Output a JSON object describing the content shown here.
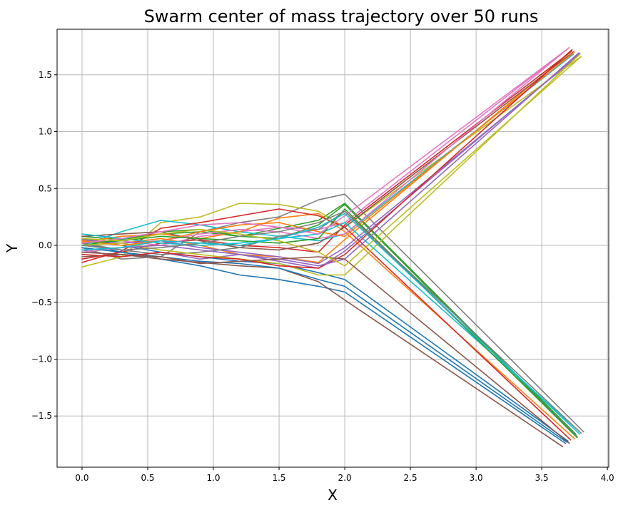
{
  "chart_data": {
    "type": "line",
    "title": "Swarm center of mass trajectory over 50 runs",
    "xlabel": "X",
    "ylabel": "Y",
    "xlim": [
      -0.19,
      4.01
    ],
    "ylim": [
      -1.95,
      1.9
    ],
    "xticks": [
      0.0,
      0.5,
      1.0,
      1.5,
      2.0,
      2.5,
      3.0,
      3.5,
      4.0
    ],
    "xtick_labels": [
      "0.0",
      "0.5",
      "1.0",
      "1.5",
      "2.0",
      "2.5",
      "3.0",
      "3.5",
      "4.0"
    ],
    "yticks": [
      -1.5,
      -1.0,
      -0.5,
      0.0,
      0.5,
      1.0,
      1.5
    ],
    "ytick_labels": [
      "−1.5",
      "−1.0",
      "−0.5",
      "0.0",
      "0.5",
      "1.0",
      "1.5"
    ],
    "grid": true,
    "colors": [
      "#1f77b4",
      "#ff7f0e",
      "#2ca02c",
      "#d62728",
      "#9467bd",
      "#8c564b",
      "#e377c2",
      "#7f7f7f",
      "#bcbd22",
      "#17becf"
    ],
    "series": [
      {
        "x": [
          0,
          0.3,
          0.6,
          0.9,
          1.2,
          1.5,
          1.8,
          2.0,
          3.68
        ],
        "y": [
          0.02,
          -0.06,
          -0.12,
          -0.18,
          -0.26,
          -0.3,
          -0.36,
          -0.41,
          -1.74
        ]
      },
      {
        "x": [
          0,
          0.3,
          0.6,
          0.9,
          1.2,
          1.5,
          1.8,
          2.0,
          3.72
        ],
        "y": [
          0.05,
          0.02,
          0.06,
          0.0,
          -0.08,
          -0.1,
          -0.15,
          0.05,
          1.7
        ]
      },
      {
        "x": [
          0,
          0.3,
          0.6,
          0.9,
          1.2,
          1.5,
          1.8,
          2.0,
          3.76
        ],
        "y": [
          0.08,
          0.05,
          0.1,
          0.12,
          0.08,
          0.15,
          0.22,
          0.37,
          -1.66
        ]
      },
      {
        "x": [
          0,
          0.3,
          0.6,
          0.9,
          1.2,
          1.5,
          1.8,
          2.0,
          3.73
        ],
        "y": [
          -0.12,
          -0.06,
          0.02,
          0.05,
          0.0,
          -0.02,
          -0.06,
          0.18,
          1.71
        ]
      },
      {
        "x": [
          0,
          0.3,
          0.6,
          0.9,
          1.2,
          1.5,
          1.8,
          2.0,
          3.79
        ],
        "y": [
          -0.04,
          -0.1,
          -0.06,
          -0.12,
          -0.08,
          -0.14,
          -0.2,
          -0.05,
          1.69
        ]
      },
      {
        "x": [
          0,
          0.3,
          0.6,
          0.9,
          1.2,
          1.5,
          1.8,
          2.0,
          3.66
        ],
        "y": [
          -0.1,
          -0.08,
          -0.12,
          -0.15,
          -0.18,
          -0.2,
          -0.32,
          -0.48,
          -1.77
        ]
      },
      {
        "x": [
          0,
          0.3,
          0.6,
          0.9,
          1.2,
          1.5,
          1.8,
          2.0,
          3.7
        ],
        "y": [
          0.02,
          0.04,
          0.0,
          0.08,
          0.12,
          0.16,
          0.14,
          0.2,
          1.73
        ]
      },
      {
        "x": [
          0,
          0.3,
          0.6,
          0.9,
          1.2,
          1.5,
          1.8,
          2.0,
          3.82
        ],
        "y": [
          -0.02,
          -0.12,
          -0.1,
          0.12,
          0.2,
          0.25,
          0.4,
          0.45,
          -1.64
        ]
      },
      {
        "x": [
          0,
          0.3,
          0.6,
          0.9,
          1.2,
          1.5,
          1.8,
          2.0,
          3.8
        ],
        "y": [
          -0.19,
          -0.1,
          0.2,
          0.25,
          0.37,
          0.36,
          0.3,
          0.16,
          1.66
        ]
      },
      {
        "x": [
          0,
          0.3,
          0.6,
          0.9,
          1.2,
          1.5,
          1.8,
          2.0,
          3.74
        ],
        "y": [
          0.0,
          0.12,
          0.22,
          0.18,
          0.12,
          0.08,
          0.04,
          0.1,
          1.68
        ]
      },
      {
        "x": [
          0,
          0.3,
          0.6,
          0.9,
          1.2,
          1.5,
          1.8,
          2.0,
          3.7
        ],
        "y": [
          0.06,
          0.0,
          -0.06,
          -0.1,
          -0.14,
          -0.16,
          -0.24,
          -0.3,
          -1.72
        ]
      },
      {
        "x": [
          0,
          0.3,
          0.6,
          0.9,
          1.2,
          1.5,
          1.8,
          2.0,
          3.75
        ],
        "y": [
          0.03,
          0.08,
          0.1,
          0.06,
          0.12,
          0.24,
          0.28,
          0.12,
          -1.7
        ]
      },
      {
        "x": [
          0,
          0.3,
          0.6,
          0.9,
          1.2,
          1.5,
          1.8,
          2.0,
          3.76
        ],
        "y": [
          0.0,
          0.05,
          0.12,
          0.14,
          0.08,
          0.06,
          0.18,
          0.36,
          -1.67
        ]
      },
      {
        "x": [
          0,
          0.3,
          0.6,
          0.9,
          1.2,
          1.5,
          1.8,
          2.0,
          3.72
        ],
        "y": [
          -0.15,
          -0.05,
          0.15,
          0.2,
          0.26,
          0.32,
          0.26,
          0.16,
          -1.71
        ]
      },
      {
        "x": [
          0,
          0.3,
          0.6,
          0.9,
          1.2,
          1.5,
          1.8,
          2.0,
          3.78
        ],
        "y": [
          0.05,
          0.02,
          0.04,
          -0.02,
          -0.06,
          -0.1,
          -0.16,
          -0.02,
          1.67
        ]
      },
      {
        "x": [
          0,
          0.3,
          0.6,
          0.9,
          1.2,
          1.5,
          1.8,
          2.0,
          3.74
        ],
        "y": [
          0.08,
          0.1,
          0.12,
          0.04,
          -0.02,
          -0.04,
          0.02,
          0.16,
          1.7
        ]
      },
      {
        "x": [
          0,
          0.3,
          0.6,
          0.9,
          1.2,
          1.5,
          1.8,
          2.0,
          3.71
        ],
        "y": [
          -0.06,
          -0.02,
          0.04,
          0.1,
          0.14,
          0.12,
          0.06,
          0.1,
          1.74
        ]
      },
      {
        "x": [
          0,
          0.3,
          0.6,
          0.9,
          1.2,
          1.5,
          1.8,
          2.0,
          3.77
        ],
        "y": [
          0.02,
          -0.04,
          -0.08,
          -0.06,
          -0.02,
          0.08,
          0.14,
          0.3,
          -1.68
        ]
      },
      {
        "x": [
          0,
          0.3,
          0.6,
          0.9,
          1.2,
          1.5,
          1.8,
          2.0,
          3.79
        ],
        "y": [
          0.0,
          0.02,
          -0.04,
          -0.08,
          -0.12,
          -0.16,
          -0.26,
          -0.26,
          1.68
        ]
      },
      {
        "x": [
          0,
          0.3,
          0.6,
          0.9,
          1.2,
          1.5,
          1.8,
          2.0,
          3.8
        ],
        "y": [
          0.1,
          0.06,
          0.02,
          0.0,
          0.02,
          0.06,
          0.1,
          0.2,
          -1.65
        ]
      },
      {
        "x": [
          0,
          0.3,
          0.6,
          0.9,
          1.2,
          1.5,
          1.8,
          2.0,
          3.69
        ],
        "y": [
          -0.02,
          -0.06,
          -0.1,
          -0.14,
          -0.16,
          -0.2,
          -0.3,
          -0.36,
          -1.73
        ]
      },
      {
        "x": [
          0,
          0.3,
          0.6,
          0.9,
          1.2,
          1.5,
          1.8,
          2.0,
          3.75
        ],
        "y": [
          0.04,
          0.0,
          0.04,
          0.12,
          0.18,
          0.2,
          0.12,
          0.08,
          1.7
        ]
      },
      {
        "x": [
          0,
          0.3,
          0.6,
          0.9,
          1.2,
          1.5,
          1.8,
          2.0,
          3.77
        ],
        "y": [
          0.02,
          0.04,
          0.08,
          0.06,
          0.04,
          0.02,
          0.06,
          0.32,
          -1.69
        ]
      },
      {
        "x": [
          0,
          0.3,
          0.6,
          0.9,
          1.2,
          1.5,
          1.8,
          2.0,
          3.73
        ],
        "y": [
          -0.08,
          -0.1,
          -0.06,
          -0.1,
          -0.12,
          -0.18,
          -0.2,
          -0.08,
          1.72
        ]
      },
      {
        "x": [
          0,
          0.3,
          0.6,
          0.9,
          1.2,
          1.5,
          1.8,
          2.0,
          3.78
        ],
        "y": [
          -0.04,
          -0.02,
          0.0,
          -0.04,
          -0.08,
          -0.12,
          -0.18,
          -0.12,
          1.69
        ]
      },
      {
        "x": [
          0,
          0.3,
          0.6,
          0.9,
          1.2,
          1.5,
          1.8,
          2.0,
          3.71
        ],
        "y": [
          -0.06,
          -0.08,
          -0.1,
          -0.16,
          -0.14,
          -0.12,
          -0.1,
          -0.12,
          -1.74
        ]
      },
      {
        "x": [
          0,
          0.3,
          0.6,
          0.9,
          1.2,
          1.5,
          1.8,
          2.0,
          3.7
        ],
        "y": [
          0.02,
          0.06,
          0.12,
          0.18,
          0.2,
          0.16,
          0.1,
          0.26,
          1.73
        ]
      },
      {
        "x": [
          0,
          0.3,
          0.6,
          0.9,
          1.2,
          1.5,
          1.8,
          2.0,
          3.8
        ],
        "y": [
          0.0,
          -0.04,
          -0.02,
          0.02,
          0.08,
          0.12,
          0.2,
          0.3,
          -1.65
        ]
      },
      {
        "x": [
          0,
          0.3,
          0.6,
          0.9,
          1.2,
          1.5,
          1.8,
          2.0,
          3.8
        ],
        "y": [
          0.06,
          0.04,
          0.1,
          0.14,
          0.1,
          0.04,
          -0.06,
          -0.18,
          1.66
        ]
      },
      {
        "x": [
          0,
          0.3,
          0.6,
          0.9,
          1.2,
          1.5,
          1.8,
          2.0,
          3.79
        ],
        "y": [
          -0.04,
          -0.02,
          0.04,
          0.02,
          0.0,
          0.06,
          0.16,
          0.28,
          -1.66
        ]
      }
    ]
  }
}
